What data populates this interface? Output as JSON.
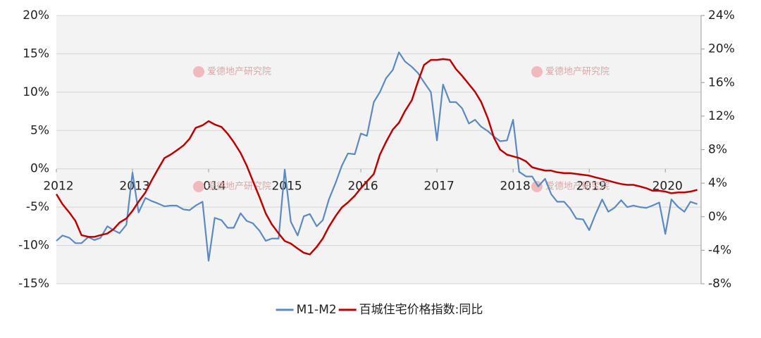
{
  "chart_data": {
    "type": "line",
    "watermark": "爱德地产研究院",
    "x": [
      2012.0,
      2012.08,
      2012.17,
      2012.25,
      2012.33,
      2012.42,
      2012.5,
      2012.58,
      2012.67,
      2012.75,
      2012.83,
      2012.92,
      2013.0,
      2013.08,
      2013.17,
      2013.25,
      2013.33,
      2013.42,
      2013.5,
      2013.58,
      2013.67,
      2013.75,
      2013.83,
      2013.92,
      2014.0,
      2014.08,
      2014.17,
      2014.25,
      2014.33,
      2014.42,
      2014.5,
      2014.58,
      2014.67,
      2014.75,
      2014.83,
      2014.92,
      2015.0,
      2015.08,
      2015.17,
      2015.25,
      2015.33,
      2015.42,
      2015.5,
      2015.58,
      2015.67,
      2015.75,
      2015.83,
      2015.92,
      2016.0,
      2016.08,
      2016.17,
      2016.25,
      2016.33,
      2016.42,
      2016.5,
      2016.58,
      2016.67,
      2016.75,
      2016.83,
      2016.92,
      2017.0,
      2017.08,
      2017.17,
      2017.25,
      2017.33,
      2017.42,
      2017.5,
      2017.58,
      2017.67,
      2017.75,
      2017.83,
      2017.92,
      2018.0,
      2018.08,
      2018.17,
      2018.25,
      2018.33,
      2018.42,
      2018.5,
      2018.58,
      2018.67,
      2018.75,
      2018.83,
      2018.92,
      2019.0,
      2019.08,
      2019.17,
      2019.25,
      2019.33,
      2019.42,
      2019.5,
      2019.58,
      2019.67,
      2019.75,
      2019.83,
      2019.92,
      2020.0,
      2020.08,
      2020.17,
      2020.25,
      2020.33,
      2020.42
    ],
    "xlim": [
      2012,
      2020.47
    ],
    "xticks": [
      2012,
      2013,
      2014,
      2015,
      2016,
      2017,
      2018,
      2019,
      2020
    ],
    "ylim": [
      -15,
      20
    ],
    "yticks": [
      {
        "value": 20,
        "label": "20%"
      },
      {
        "value": 15,
        "label": "15%"
      },
      {
        "value": 10,
        "label": "10%"
      },
      {
        "value": 5,
        "label": "5%"
      },
      {
        "value": 0,
        "label": "0%"
      },
      {
        "value": -5,
        "label": "-5%"
      },
      {
        "value": -10,
        "label": "-10%"
      },
      {
        "value": -15,
        "label": "-15%"
      }
    ],
    "y2lim": [
      -8,
      24
    ],
    "y2ticks": [
      {
        "value": 24,
        "label": "24%"
      },
      {
        "value": 20,
        "label": "20%"
      },
      {
        "value": 16,
        "label": "16%"
      },
      {
        "value": 12,
        "label": "12%"
      },
      {
        "value": 8,
        "label": "8%"
      },
      {
        "value": 4,
        "label": "4%"
      },
      {
        "value": 0,
        "label": "0%"
      },
      {
        "value": -4,
        "label": "-4%"
      },
      {
        "value": -8,
        "label": "-8%"
      }
    ],
    "grid": true,
    "legend": "bottom",
    "series": [
      {
        "name": "M1-M2",
        "color": "#5b8ac3",
        "axis": "y",
        "values": [
          -9.4,
          -8.7,
          -9.0,
          -9.7,
          -9.7,
          -8.9,
          -9.3,
          -9.0,
          -7.5,
          -8.0,
          -8.4,
          -7.3,
          -0.5,
          -5.7,
          -3.8,
          -4.2,
          -4.5,
          -4.9,
          -4.8,
          -4.8,
          -5.3,
          -5.4,
          -4.8,
          -4.3,
          -12.0,
          -6.4,
          -6.7,
          -7.7,
          -7.7,
          -5.8,
          -6.8,
          -7.1,
          -8.1,
          -9.4,
          -9.1,
          -9.1,
          -0.1,
          -6.9,
          -8.7,
          -6.2,
          -5.9,
          -7.5,
          -6.7,
          -4.0,
          -1.8,
          0.4,
          2.0,
          1.9,
          4.6,
          4.3,
          8.7,
          10.0,
          11.8,
          12.9,
          15.2,
          14.0,
          13.3,
          12.5,
          11.3,
          10.0,
          3.7,
          11.0,
          8.7,
          8.7,
          7.9,
          5.9,
          6.4,
          5.5,
          4.9,
          4.2,
          3.6,
          3.7,
          6.4,
          -0.4,
          -1.0,
          -1.0,
          -2.3,
          -1.3,
          -3.3,
          -4.3,
          -4.3,
          -5.2,
          -6.5,
          -6.6,
          -8.0,
          -6.0,
          -4.0,
          -5.6,
          -5.1,
          -4.1,
          -5.0,
          -4.8,
          -5.0,
          -5.1,
          -4.8,
          -4.4,
          -8.5,
          -4.0,
          -5.0,
          -5.6,
          -4.3,
          -4.6
        ]
      },
      {
        "name": "百城住宅价格指数:同比",
        "color": "#c00000",
        "axis": "y2",
        "values": [
          2.7,
          1.5,
          0.5,
          -0.5,
          -2.2,
          -2.4,
          -2.4,
          -2.2,
          -2.0,
          -1.5,
          -0.7,
          -0.2,
          0.7,
          1.8,
          2.9,
          4.3,
          5.6,
          7.0,
          7.4,
          7.9,
          8.5,
          9.3,
          10.6,
          10.9,
          11.4,
          11.0,
          10.7,
          9.9,
          8.9,
          7.6,
          6.1,
          4.3,
          2.3,
          0.4,
          -0.9,
          -2.0,
          -2.9,
          -3.2,
          -3.8,
          -4.3,
          -4.5,
          -3.6,
          -2.6,
          -1.2,
          0.1,
          1.1,
          1.7,
          2.5,
          3.4,
          4.2,
          5.1,
          7.4,
          8.9,
          10.4,
          11.2,
          12.6,
          13.9,
          16.1,
          18.1,
          18.7,
          18.7,
          18.8,
          18.7,
          17.6,
          16.8,
          15.8,
          14.9,
          13.7,
          11.7,
          9.4,
          8.0,
          7.4,
          7.2,
          7.0,
          6.6,
          5.9,
          5.7,
          5.5,
          5.5,
          5.3,
          5.2,
          5.2,
          5.1,
          5.0,
          4.9,
          4.7,
          4.5,
          4.3,
          4.1,
          3.9,
          3.8,
          3.8,
          3.6,
          3.4,
          3.1,
          3.1,
          3.0,
          2.8,
          2.9,
          2.9,
          3.0,
          3.2
        ]
      }
    ]
  }
}
